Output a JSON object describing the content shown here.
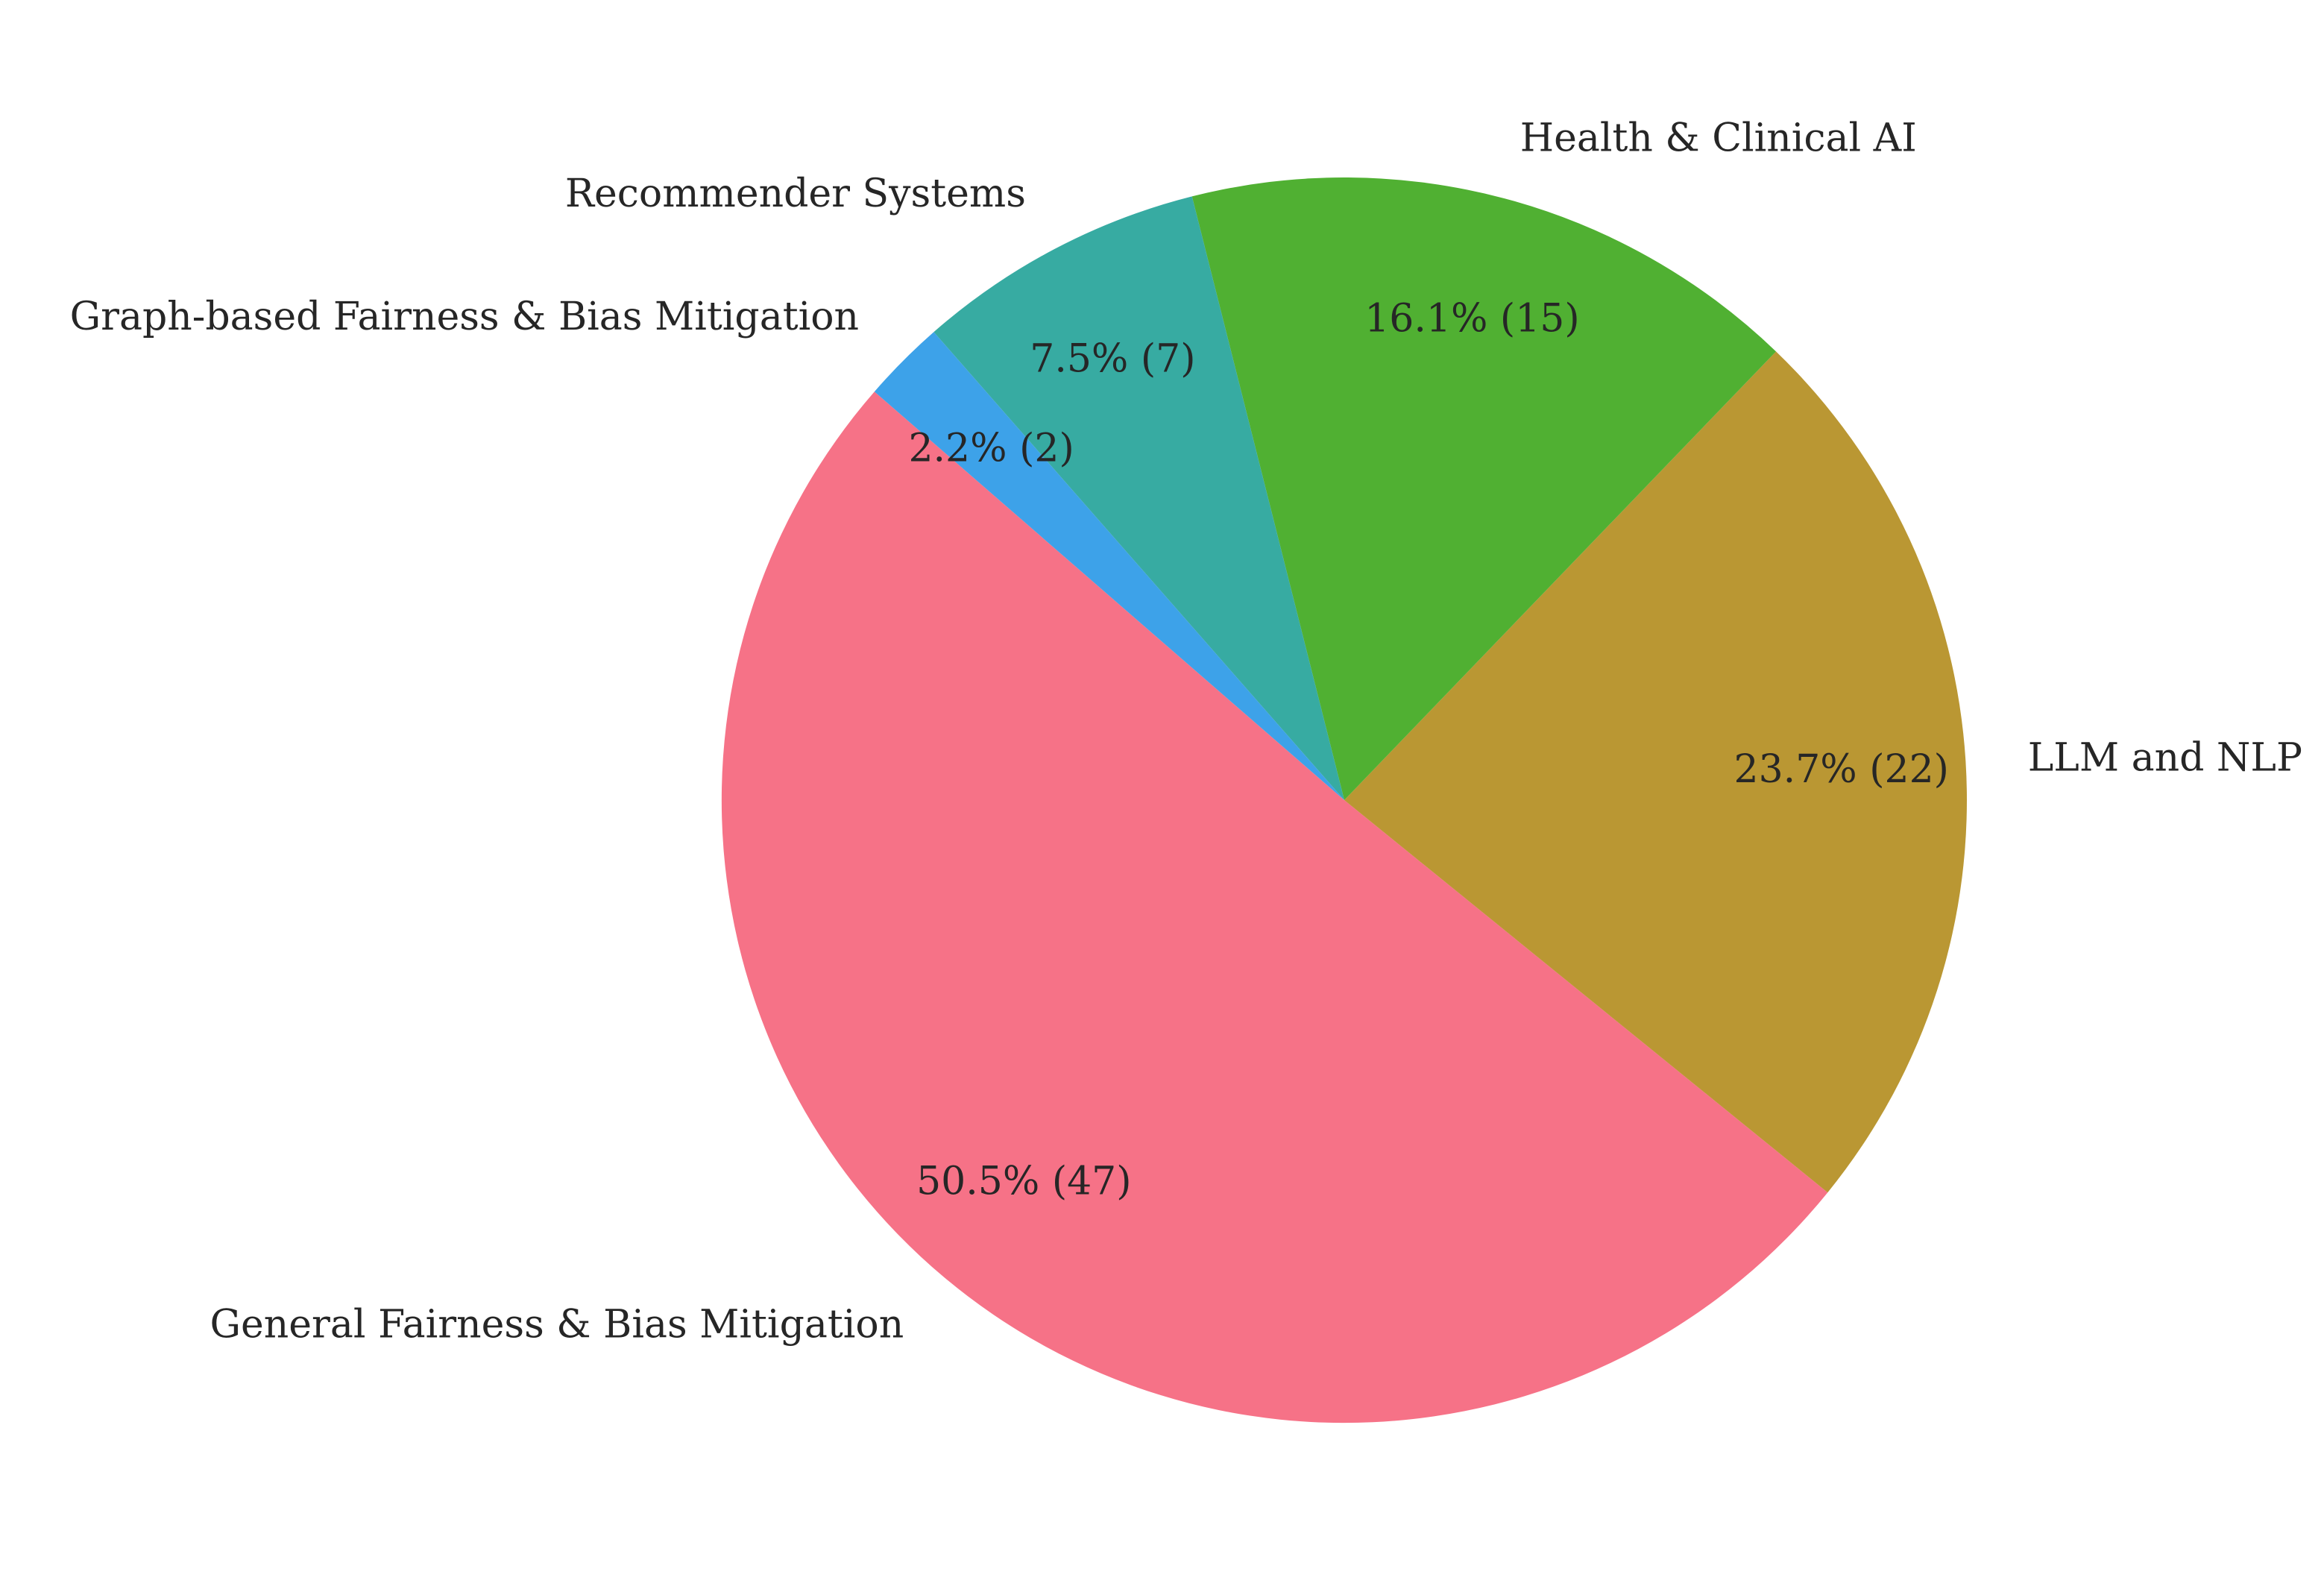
{
  "chart_data": {
    "type": "pie",
    "start_angle_deg": 139,
    "direction": "counterclockwise",
    "slices": [
      {
        "label": "General Fairness & Bias Mitigation",
        "value": 47,
        "percent_label": "50.5% (47)",
        "color": "#f67287"
      },
      {
        "label": "LLM and NLP",
        "value": 22,
        "percent_label": "23.7% (22)",
        "color": "#ba9733"
      },
      {
        "label": "Health & Clinical AI",
        "value": 15,
        "percent_label": "16.1% (15)",
        "color": "#50b032"
      },
      {
        "label": "Recommender Systems",
        "value": 7,
        "percent_label": "7.5% (7)",
        "color": "#37aba2"
      },
      {
        "label": "Graph-based Fairness & Bias Mitigation",
        "value": 2,
        "percent_label": "2.2% (2)",
        "color": "#3da2e9"
      }
    ]
  }
}
